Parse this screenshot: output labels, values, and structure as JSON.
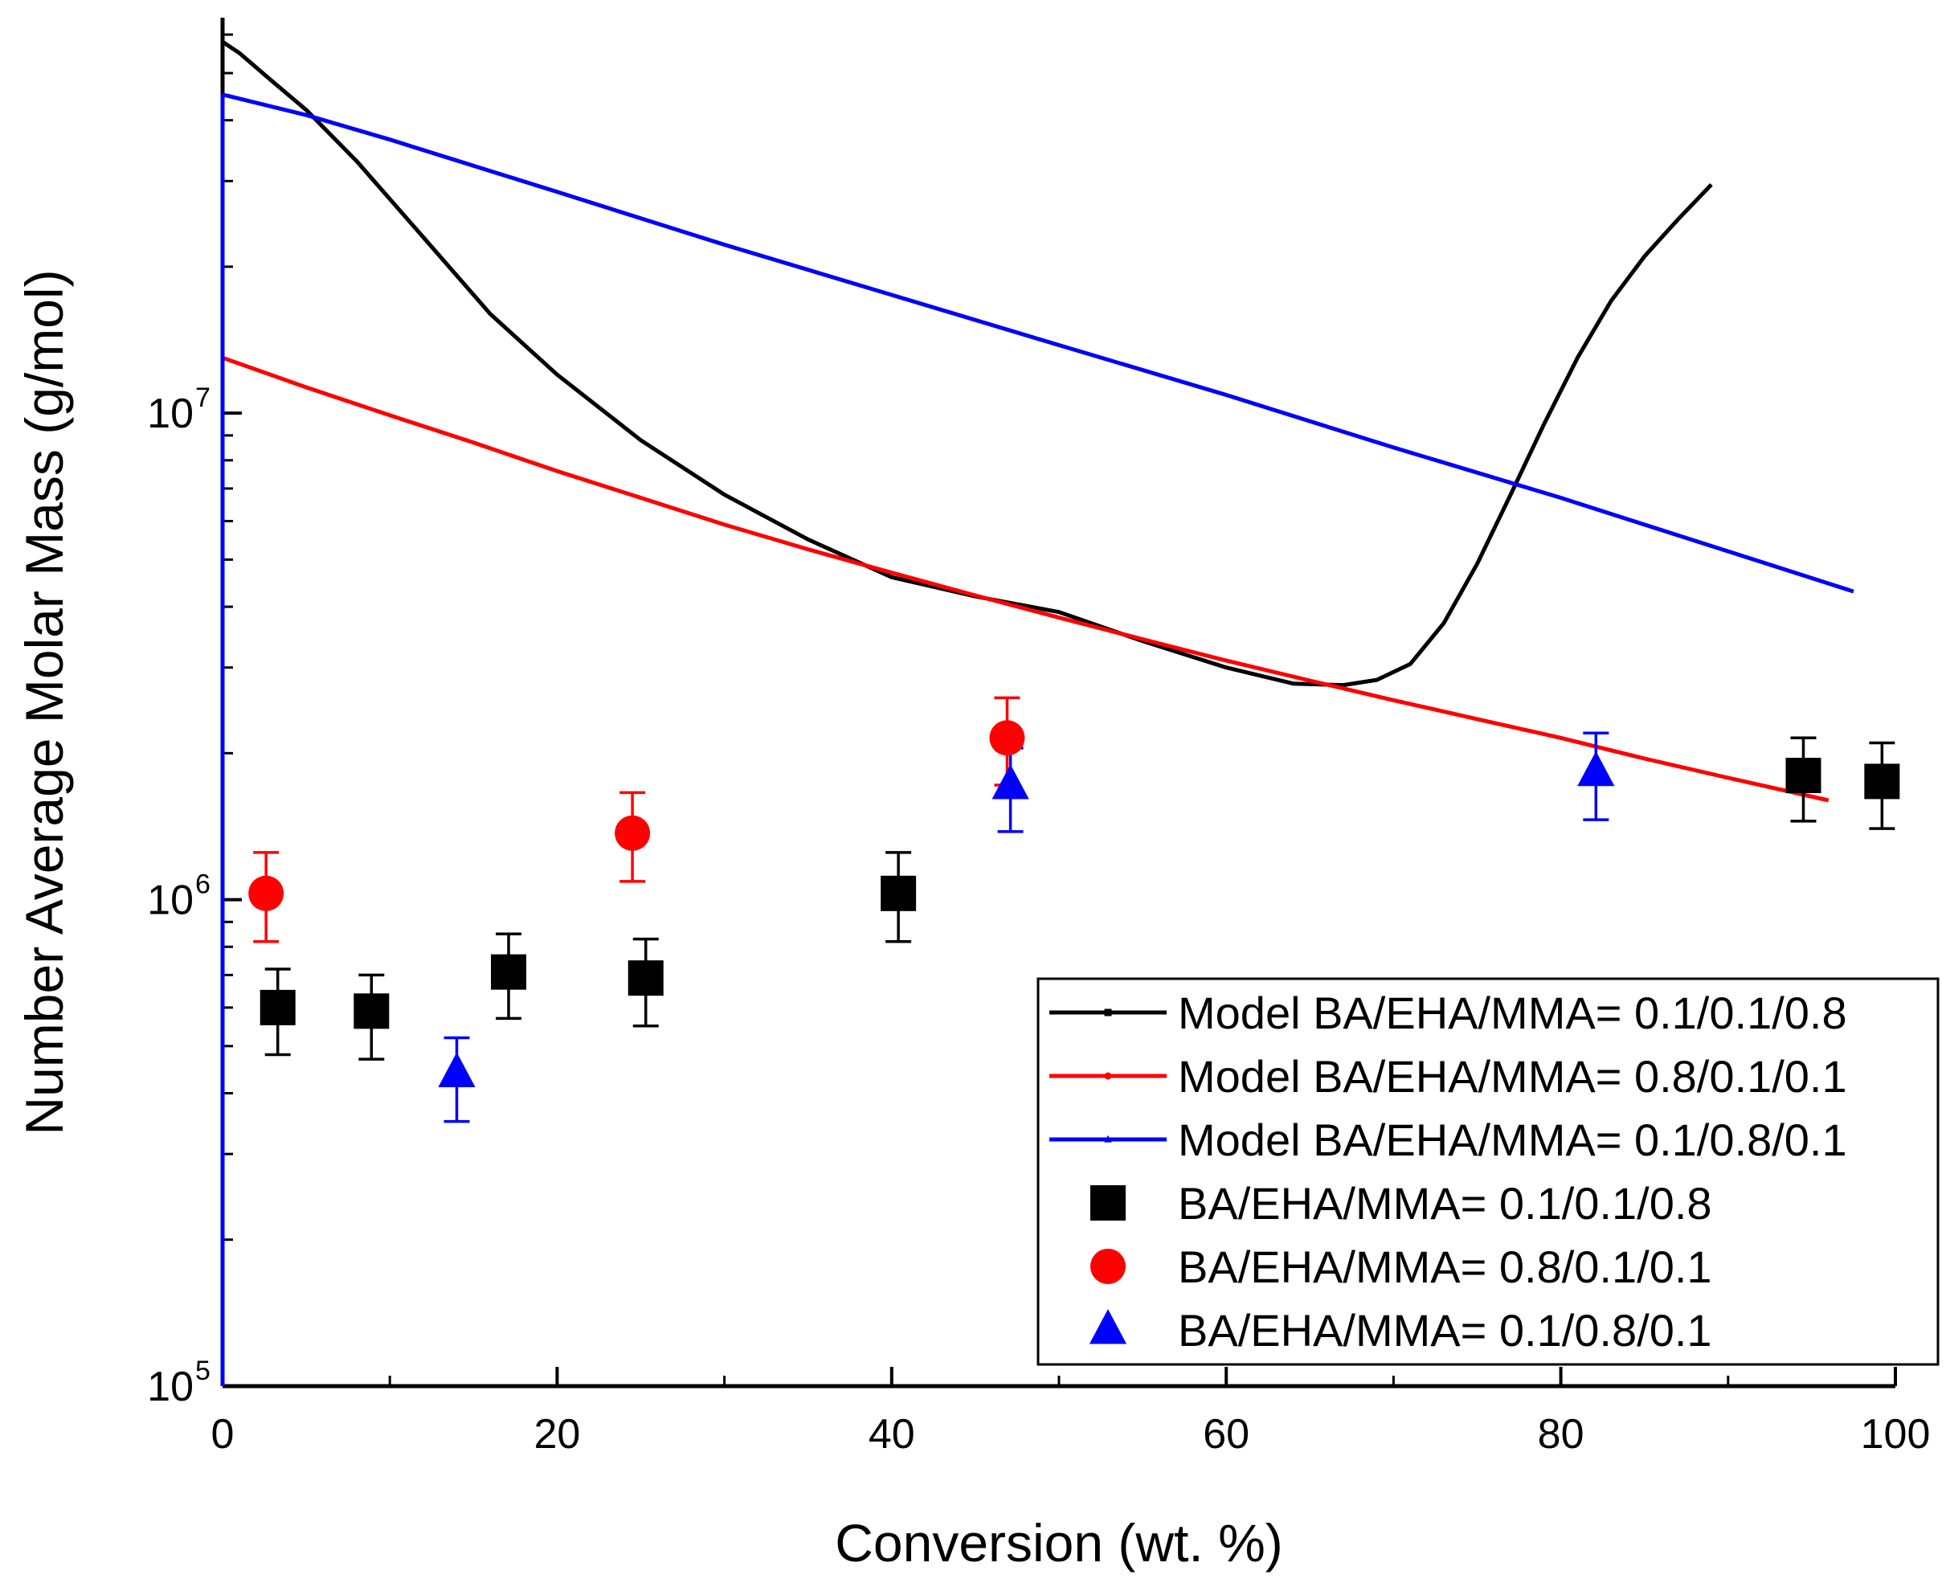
{
  "chart_data": {
    "type": "scatter",
    "xlabel": "Conversion (wt. %)",
    "ylabel": "Number Average Molar Mass (g/mol)",
    "xlim": [
      0,
      100
    ],
    "ylim": [
      100000,
      65000000
    ],
    "yscale": "log",
    "x_ticks": [
      0,
      20,
      40,
      60,
      80,
      100
    ],
    "x_tick_labels": [
      "0",
      "20",
      "40",
      "60",
      "80",
      "100"
    ],
    "y_ticks": [
      {
        "value": 100000,
        "base": "10",
        "exp": "5"
      },
      {
        "value": 1000000,
        "base": "10",
        "exp": "6"
      },
      {
        "value": 10000000,
        "base": "10",
        "exp": "7"
      }
    ],
    "grid": false,
    "legend_position": "bottom-right",
    "series": [
      {
        "name": "Model BA/EHA/MMA= 0.1/0.1/0.8",
        "kind": "line",
        "color": "#000000",
        "x": [
          0,
          1,
          3,
          5,
          8,
          12,
          16,
          20,
          25,
          30,
          35,
          40,
          45,
          50,
          55,
          60,
          64,
          67,
          69,
          71,
          73,
          75,
          77,
          79,
          81,
          83,
          85,
          87,
          89
        ],
        "y": [
          58000000,
          55000000,
          48000000,
          42000000,
          33000000,
          23000000,
          16000000,
          12000000,
          8800000,
          6800000,
          5500000,
          4600000,
          4200000,
          3900000,
          3400000,
          3000000,
          2780000,
          2760000,
          2830000,
          3050000,
          3700000,
          4900000,
          6800000,
          9500000,
          13000000,
          17000000,
          21000000,
          25000000,
          29500000
        ]
      },
      {
        "name": "Model BA/EHA/MMA= 0.8/0.1/0.1",
        "kind": "line",
        "color": "#ff0000",
        "x": [
          0,
          5,
          10,
          15,
          20,
          25,
          30,
          35,
          40,
          45,
          50,
          55,
          60,
          65,
          70,
          75,
          80,
          85,
          90,
          96
        ],
        "y": [
          13000000,
          11300000,
          9900000,
          8700000,
          7600000,
          6700000,
          5900000,
          5250000,
          4700000,
          4220000,
          3800000,
          3430000,
          3100000,
          2820000,
          2570000,
          2350000,
          2150000,
          1950000,
          1780000,
          1600000
        ]
      },
      {
        "name": "Model BA/EHA/MMA= 0.1/0.8/0.1",
        "kind": "line",
        "color": "#0000ff",
        "x": [
          0,
          0,
          0.2,
          5,
          10,
          20,
          30,
          40,
          50,
          60,
          70,
          80,
          85,
          90,
          94,
          97.5
        ],
        "y": [
          100000,
          45000000,
          45000000,
          41000000,
          36500000,
          28500000,
          22200000,
          17500000,
          13800000,
          10900000,
          8500000,
          6700000,
          5900000,
          5200000,
          4700000,
          4300000
        ]
      },
      {
        "name": "BA/EHA/MMA= 0.1/0.1/0.8",
        "kind": "scatter",
        "marker": "square",
        "color": "#000000",
        "x": [
          3.3,
          8.9,
          17.1,
          25.3,
          40.4,
          94.5,
          99.2
        ],
        "y": [
          600000,
          590000,
          710000,
          690000,
          1030000,
          1800000,
          1750000
        ],
        "err_low": [
          480000,
          470000,
          570000,
          550000,
          820000,
          1450000,
          1400000
        ],
        "err_high": [
          720000,
          700000,
          850000,
          830000,
          1250000,
          2150000,
          2100000
        ]
      },
      {
        "name": "BA/EHA/MMA= 0.8/0.1/0.1",
        "kind": "scatter",
        "marker": "circle",
        "color": "#ff0000",
        "x": [
          2.6,
          24.5,
          46.9
        ],
        "y": [
          1030000,
          1370000,
          2150000
        ],
        "err_low": [
          820000,
          1090000,
          1720000
        ],
        "err_high": [
          1250000,
          1660000,
          2600000
        ]
      },
      {
        "name": "BA/EHA/MMA= 0.1/0.8/0.1",
        "kind": "scatter",
        "marker": "triangle",
        "color": "#0000ff",
        "x": [
          14.0,
          47.1,
          82.1
        ],
        "y": [
          440000,
          1720000,
          1830000
        ],
        "err_low": [
          350000,
          1380000,
          1460000
        ],
        "err_high": [
          520000,
          2050000,
          2200000
        ]
      }
    ]
  }
}
